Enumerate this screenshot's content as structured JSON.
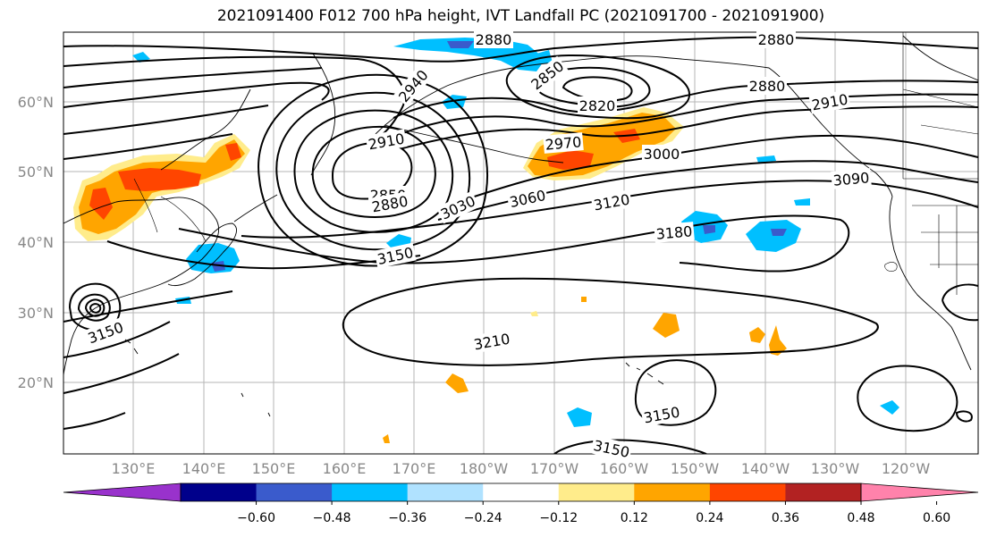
{
  "title": "2021091400 F012 700 hPa height, IVT Landfall PC (2021091700 - 2021091900)",
  "lat_labels": [
    "60°N",
    "50°N",
    "40°N",
    "30°N",
    "20°N"
  ],
  "lon_labels": [
    "130°E",
    "140°E",
    "150°E",
    "160°E",
    "170°E",
    "180°W",
    "170°W",
    "160°W",
    "150°W",
    "140°W",
    "130°W",
    "120°W"
  ],
  "colorbar": {
    "colors": [
      "#9932cc",
      "#00008b",
      "#3a5bcc",
      "#00bfff",
      "#b0e2ff",
      "#ffffff",
      "#ffec8b",
      "#ffa500",
      "#ff4500",
      "#b22222",
      "#ff82ab"
    ],
    "tick_labels": [
      "−0.60",
      "−0.48",
      "−0.36",
      "−0.24",
      "−0.12",
      "0.12",
      "0.24",
      "0.36",
      "0.48",
      "0.60"
    ]
  },
  "contour_labels": [
    {
      "text": "2880",
      "rot": 0
    },
    {
      "text": "2880",
      "rot": 0
    },
    {
      "text": "2850",
      "rot": -38
    },
    {
      "text": "2820",
      "rot": 0
    },
    {
      "text": "2880",
      "rot": 0
    },
    {
      "text": "2910",
      "rot": -10
    },
    {
      "text": "2940",
      "rot": -50
    },
    {
      "text": "2910",
      "rot": -10
    },
    {
      "text": "2970",
      "rot": -5
    },
    {
      "text": "3000",
      "rot": 0
    },
    {
      "text": "3090",
      "rot": -5
    },
    {
      "text": "2850",
      "rot": 0
    },
    {
      "text": "2880",
      "rot": -10
    },
    {
      "text": "3030",
      "rot": -25
    },
    {
      "text": "3060",
      "rot": -12
    },
    {
      "text": "3120",
      "rot": -10
    },
    {
      "text": "3180",
      "rot": -5
    },
    {
      "text": "3150",
      "rot": -12
    },
    {
      "text": "3150",
      "rot": -20
    },
    {
      "text": "3210",
      "rot": -10
    },
    {
      "text": "3150",
      "rot": -10
    },
    {
      "text": "3150",
      "rot": 12
    }
  ]
}
